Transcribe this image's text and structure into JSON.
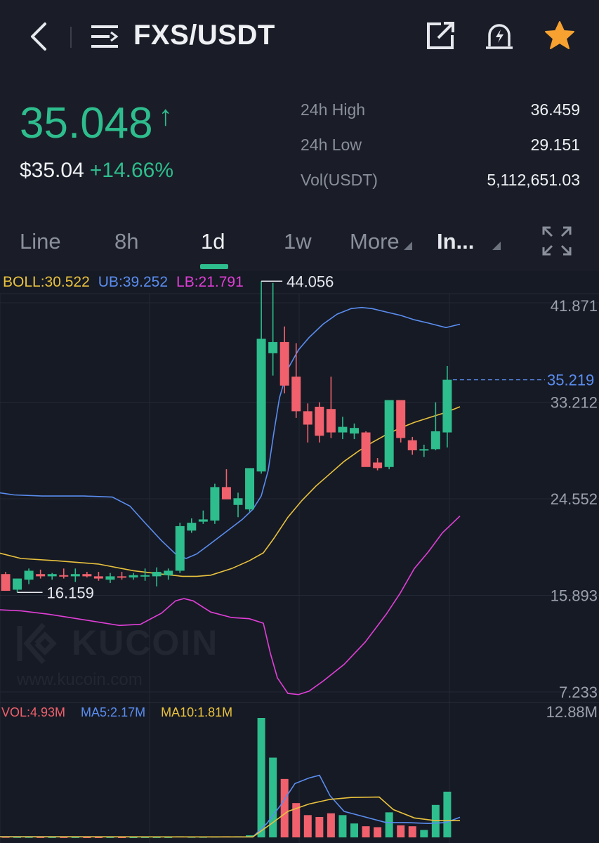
{
  "header": {
    "pair": "FXS/USDT",
    "icons": [
      "back-arrow-icon",
      "list-menu-icon",
      "share-icon",
      "price-alert-icon",
      "favorite-star-icon"
    ]
  },
  "ticker": {
    "last_price": "35.048",
    "arrow": "↑",
    "usd_price": "$35.04",
    "change_pct": "+14.66%",
    "stats": [
      {
        "label": "24h High",
        "value": "36.459"
      },
      {
        "label": "24h Low",
        "value": "29.151"
      },
      {
        "label": "Vol(USDT)",
        "value": "5,112,651.03"
      }
    ]
  },
  "tabs": [
    {
      "label": "Line",
      "active": false
    },
    {
      "label": "8h",
      "active": false
    },
    {
      "label": "1d",
      "active": true
    },
    {
      "label": "1w",
      "active": false
    },
    {
      "label": "More",
      "active": false,
      "dropdown": true
    },
    {
      "label": "In...",
      "active": false,
      "dropdown": true
    }
  ],
  "indicators": {
    "boll": "BOLL:30.522",
    "ub": "UB:39.252",
    "lb": "LB:21.791",
    "vol": "VOL:4.93M",
    "ma5": "MA5:2.17M",
    "ma10": "MA10:1.81M"
  },
  "colors": {
    "up": "#2ebd8d",
    "down": "#f0616d",
    "boll": "#e9c23e",
    "ub": "#5a8df0",
    "lb": "#e03fd8",
    "accent": "#f7a131"
  },
  "watermark": {
    "brand": "KUCOIN",
    "url": "www.kucoin.com"
  },
  "chart_data": {
    "type": "candlestick",
    "y_axis_labels": [
      "41.871",
      "33.212",
      "24.552",
      "15.893",
      "7.233"
    ],
    "volume_axis_label": "12.88M",
    "current_price_label": "35.219",
    "max_label": "44.056",
    "min_label": "16.159",
    "candles": [
      {
        "o": 17.8,
        "h": 18.0,
        "l": 16.3,
        "c": 16.3
      },
      {
        "o": 16.4,
        "h": 17.4,
        "l": 16.159,
        "c": 17.4
      },
      {
        "o": 17.3,
        "h": 18.3,
        "l": 16.9,
        "c": 18.1
      },
      {
        "o": 17.8,
        "h": 18.2,
        "l": 17.4,
        "c": 17.6
      },
      {
        "o": 17.6,
        "h": 17.9,
        "l": 17.3,
        "c": 17.8
      },
      {
        "o": 17.7,
        "h": 18.3,
        "l": 17.4,
        "c": 17.6
      },
      {
        "o": 17.6,
        "h": 18.3,
        "l": 17.1,
        "c": 17.8
      },
      {
        "o": 17.8,
        "h": 18.0,
        "l": 17.5,
        "c": 17.6
      },
      {
        "o": 17.6,
        "h": 18.0,
        "l": 17.2,
        "c": 17.4
      },
      {
        "o": 17.3,
        "h": 17.9,
        "l": 17.0,
        "c": 17.6
      },
      {
        "o": 17.6,
        "h": 18.0,
        "l": 17.3,
        "c": 17.5
      },
      {
        "o": 17.5,
        "h": 17.9,
        "l": 17.3,
        "c": 17.7
      },
      {
        "o": 17.6,
        "h": 18.3,
        "l": 17.2,
        "c": 17.7
      },
      {
        "o": 17.6,
        "h": 18.4,
        "l": 16.7,
        "c": 18.0
      },
      {
        "o": 17.7,
        "h": 18.3,
        "l": 17.3,
        "c": 18.1
      },
      {
        "o": 18.1,
        "h": 22.4,
        "l": 17.9,
        "c": 22.1
      },
      {
        "o": 21.7,
        "h": 22.8,
        "l": 21.5,
        "c": 22.4
      },
      {
        "o": 22.5,
        "h": 23.5,
        "l": 22.3,
        "c": 22.7
      },
      {
        "o": 22.6,
        "h": 25.9,
        "l": 22.3,
        "c": 25.6
      },
      {
        "o": 25.6,
        "h": 27.2,
        "l": 24.6,
        "c": 24.5
      },
      {
        "o": 24.0,
        "h": 25.1,
        "l": 22.9,
        "c": 24.6
      },
      {
        "o": 23.6,
        "h": 27.2,
        "l": 23.4,
        "c": 27.3
      },
      {
        "o": 27.0,
        "h": 44.056,
        "l": 26.8,
        "c": 38.9
      },
      {
        "o": 37.6,
        "h": 43.9,
        "l": 35.6,
        "c": 38.6
      },
      {
        "o": 38.6,
        "h": 40.0,
        "l": 34.0,
        "c": 34.7
      },
      {
        "o": 35.5,
        "h": 38.5,
        "l": 31.8,
        "c": 32.4
      },
      {
        "o": 32.4,
        "h": 33.1,
        "l": 29.6,
        "c": 31.2
      },
      {
        "o": 32.8,
        "h": 33.2,
        "l": 29.6,
        "c": 30.2
      },
      {
        "o": 32.6,
        "h": 35.5,
        "l": 30.0,
        "c": 30.5
      },
      {
        "o": 30.5,
        "h": 31.9,
        "l": 29.9,
        "c": 31.0
      },
      {
        "o": 30.4,
        "h": 31.3,
        "l": 29.9,
        "c": 30.9
      },
      {
        "o": 30.5,
        "h": 30.6,
        "l": 27.6,
        "c": 27.4
      },
      {
        "o": 27.8,
        "h": 28.2,
        "l": 27.1,
        "c": 27.3
      },
      {
        "o": 27.4,
        "h": 33.4,
        "l": 27.2,
        "c": 33.4
      },
      {
        "o": 33.4,
        "h": 33.4,
        "l": 29.6,
        "c": 30.0
      },
      {
        "o": 29.8,
        "h": 30.1,
        "l": 28.5,
        "c": 28.9
      },
      {
        "o": 28.9,
        "h": 29.4,
        "l": 28.3,
        "c": 29.0
      },
      {
        "o": 29.0,
        "h": 33.2,
        "l": 28.9,
        "c": 30.6
      },
      {
        "o": 30.5,
        "h": 36.459,
        "l": 29.151,
        "c": 35.219
      }
    ],
    "ub_line": [
      [
        -2,
        25.1
      ],
      [
        20,
        24.9
      ],
      [
        60,
        24.8
      ],
      [
        120,
        24.8
      ],
      [
        160,
        24.7
      ],
      [
        185,
        23.9
      ],
      [
        205,
        22.5
      ],
      [
        230,
        20.8
      ],
      [
        250,
        19.6
      ],
      [
        265,
        19.2
      ],
      [
        280,
        19.6
      ],
      [
        295,
        20.3
      ],
      [
        320,
        21.5
      ],
      [
        345,
        22.7
      ],
      [
        360,
        23.6
      ],
      [
        372,
        24.8
      ],
      [
        382,
        27.1
      ],
      [
        390,
        30.5
      ],
      [
        398,
        33.6
      ],
      [
        410,
        36.2
      ],
      [
        425,
        37.9
      ],
      [
        440,
        39.0
      ],
      [
        460,
        40.2
      ],
      [
        480,
        41.1
      ],
      [
        500,
        41.6
      ],
      [
        515,
        41.7
      ],
      [
        530,
        41.6
      ],
      [
        550,
        41.3
      ],
      [
        570,
        41.0
      ],
      [
        590,
        40.6
      ],
      [
        610,
        40.3
      ],
      [
        635,
        39.9
      ],
      [
        655,
        40.2
      ]
    ],
    "boll_line": [
      [
        -2,
        19.7
      ],
      [
        30,
        19.2
      ],
      [
        80,
        19.0
      ],
      [
        140,
        18.7
      ],
      [
        190,
        18.1
      ],
      [
        230,
        17.8
      ],
      [
        260,
        17.6
      ],
      [
        280,
        17.6
      ],
      [
        300,
        17.7
      ],
      [
        330,
        18.3
      ],
      [
        355,
        19.0
      ],
      [
        375,
        19.7
      ],
      [
        390,
        21.0
      ],
      [
        410,
        22.9
      ],
      [
        430,
        24.4
      ],
      [
        450,
        25.7
      ],
      [
        470,
        26.8
      ],
      [
        490,
        27.9
      ],
      [
        510,
        28.8
      ],
      [
        530,
        29.6
      ],
      [
        550,
        30.3
      ],
      [
        570,
        30.9
      ],
      [
        590,
        31.4
      ],
      [
        610,
        31.8
      ],
      [
        635,
        32.3
      ],
      [
        655,
        32.8
      ]
    ],
    "lb_line": [
      [
        -2,
        14.6
      ],
      [
        30,
        14.5
      ],
      [
        70,
        14.2
      ],
      [
        120,
        13.7
      ],
      [
        170,
        13.2
      ],
      [
        200,
        13.3
      ],
      [
        230,
        14.3
      ],
      [
        250,
        15.4
      ],
      [
        262,
        15.6
      ],
      [
        275,
        15.4
      ],
      [
        300,
        14.4
      ],
      [
        330,
        13.9
      ],
      [
        355,
        13.8
      ],
      [
        375,
        13.4
      ],
      [
        385,
        10.7
      ],
      [
        395,
        8.5
      ],
      [
        410,
        7.1
      ],
      [
        425,
        7.0
      ],
      [
        440,
        7.3
      ],
      [
        460,
        8.2
      ],
      [
        490,
        9.7
      ],
      [
        520,
        11.7
      ],
      [
        550,
        14.2
      ],
      [
        570,
        16.1
      ],
      [
        590,
        18.3
      ],
      [
        610,
        19.8
      ],
      [
        630,
        21.5
      ],
      [
        655,
        23.0
      ]
    ],
    "volumes": [
      0.07,
      0.06,
      0.06,
      0.05,
      0.05,
      0.05,
      0.05,
      0.04,
      0.04,
      0.05,
      0.04,
      0.04,
      0.05,
      0.05,
      0.05,
      0.12,
      0.07,
      0.07,
      0.1,
      0.12,
      0.12,
      0.22,
      12.88,
      8.6,
      6.3,
      3.7,
      2.4,
      2.2,
      2.6,
      2.4,
      1.5,
      1.2,
      1.1,
      2.7,
      1.3,
      1.2,
      0.8,
      3.5,
      4.93
    ],
    "ma5_line": [
      [
        0,
        0.07
      ],
      [
        360,
        0.05
      ],
      [
        380,
        1.5
      ],
      [
        400,
        3.5
      ],
      [
        420,
        5.8
      ],
      [
        440,
        6.4
      ],
      [
        455,
        6.7
      ],
      [
        470,
        4.5
      ],
      [
        490,
        2.8
      ],
      [
        520,
        2.2
      ],
      [
        550,
        1.6
      ],
      [
        580,
        1.6
      ],
      [
        610,
        1.5
      ],
      [
        635,
        1.6
      ],
      [
        655,
        2.17
      ]
    ],
    "ma10_line": [
      [
        0,
        0.06
      ],
      [
        360,
        0.05
      ],
      [
        385,
        1.4
      ],
      [
        410,
        2.8
      ],
      [
        440,
        3.6
      ],
      [
        470,
        4.1
      ],
      [
        500,
        4.3
      ],
      [
        540,
        4.35
      ],
      [
        560,
        3.0
      ],
      [
        590,
        2.1
      ],
      [
        620,
        1.8
      ],
      [
        655,
        1.81
      ]
    ]
  }
}
